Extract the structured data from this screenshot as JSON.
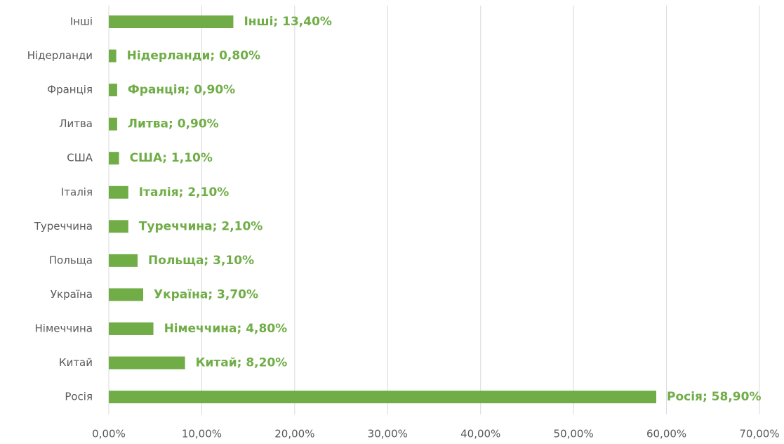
{
  "chart_data": {
    "type": "barh",
    "categories": [
      "Інші",
      "Нідерланди",
      "Франція",
      "Литва",
      "США",
      "Італія",
      "Туреччина",
      "Польща",
      "Україна",
      "Німеччина",
      "Китай",
      "Росія"
    ],
    "values": [
      13.4,
      0.8,
      0.9,
      0.9,
      1.1,
      2.1,
      2.1,
      3.1,
      3.7,
      4.8,
      8.2,
      58.9
    ],
    "value_labels": [
      "Інші; 13,40%",
      "Нідерланди; 0,80%",
      "Франція; 0,90%",
      "Литва; 0,90%",
      "США; 1,10%",
      "Італія; 2,10%",
      "Туреччина; 2,10%",
      "Польща; 3,10%",
      "Україна; 3,70%",
      "Німеччина; 4,80%",
      "Китай; 8,20%",
      "Росія; 58,90%"
    ],
    "color": "#70ad47",
    "xlim": [
      0,
      70
    ],
    "xticks": [
      {
        "value": 0,
        "label": "0,00%"
      },
      {
        "value": 10,
        "label": "10,00%"
      },
      {
        "value": 20,
        "label": "20,00%"
      },
      {
        "value": 30,
        "label": "30,00%"
      },
      {
        "value": 40,
        "label": "40,00%"
      },
      {
        "value": 50,
        "label": "50,00%"
      },
      {
        "value": 60,
        "label": "60,00%"
      },
      {
        "value": 70,
        "label": "70,00%"
      }
    ],
    "grid": true
  }
}
